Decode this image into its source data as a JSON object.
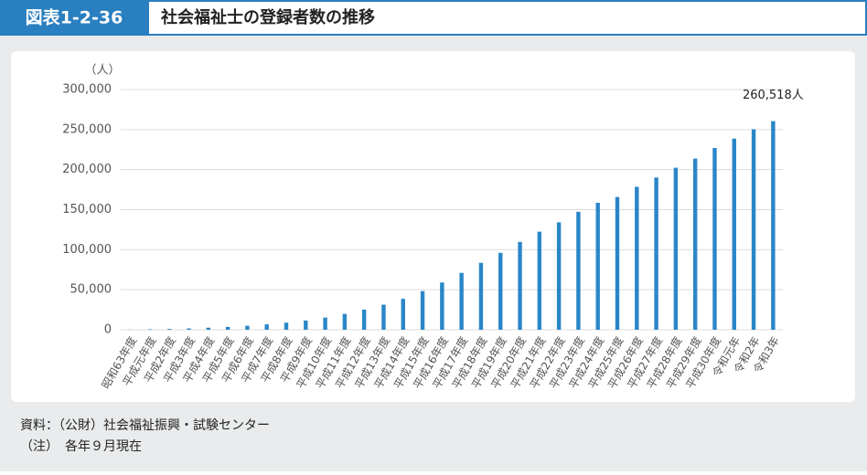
{
  "figure_label": "図表1-2-36",
  "chart_data": {
    "type": "bar",
    "title": "社会福祉士の登録者数の推移",
    "y_unit": "（人）",
    "categories": [
      "昭和63年度",
      "平成元年度",
      "平成2年度",
      "平成3年度",
      "平成4年度",
      "平成5年度",
      "平成6年度",
      "平成7年度",
      "平成8年度",
      "平成9年度",
      "平成10年度",
      "平成11年度",
      "平成12年度",
      "平成13年度",
      "平成14年度",
      "平成15年度",
      "平成16年度",
      "平成17年度",
      "平成18年度",
      "平成19年度",
      "平成20年度",
      "平成21年度",
      "平成22年度",
      "平成23年度",
      "平成24年度",
      "平成25年度",
      "平成26年度",
      "平成27年度",
      "平成28年度",
      "平成29年度",
      "平成30年度",
      "令和元年",
      "令和2年",
      "令和3年"
    ],
    "values": [
      180,
      608,
      1020,
      1673,
      2591,
      3590,
      4938,
      6755,
      8886,
      11578,
      15210,
      19870,
      25095,
      31325,
      38640,
      48260,
      59040,
      71044,
      83560,
      96088,
      109743,
      122486,
      134074,
      147323,
      158549,
      165782,
      178489,
      190151,
      202375,
      213741,
      227011,
      238696,
      250346,
      260518
    ],
    "value_labels": [
      null,
      null,
      null,
      null,
      null,
      null,
      null,
      null,
      null,
      null,
      null,
      null,
      null,
      null,
      null,
      null,
      null,
      null,
      null,
      null,
      null,
      null,
      null,
      null,
      null,
      null,
      null,
      null,
      null,
      null,
      null,
      null,
      null,
      "260,518人"
    ],
    "color": "#2a86c8",
    "ylim": [
      0,
      300000
    ],
    "yticks": [
      0,
      {
        "value": 50000,
        "label": "50,000"
      },
      {
        "value": 100000,
        "label": "100,000"
      },
      {
        "value": 150000,
        "label": "150,000"
      },
      {
        "value": 200000,
        "label": "200,000"
      },
      {
        "value": 250000,
        "label": "250,000"
      },
      {
        "value": 300000,
        "label": "300,000"
      }
    ],
    "grid": true
  },
  "notes": [
    "資料：（公財）社会福祉振興・試験センター",
    "（注）　各年９月現在"
  ]
}
